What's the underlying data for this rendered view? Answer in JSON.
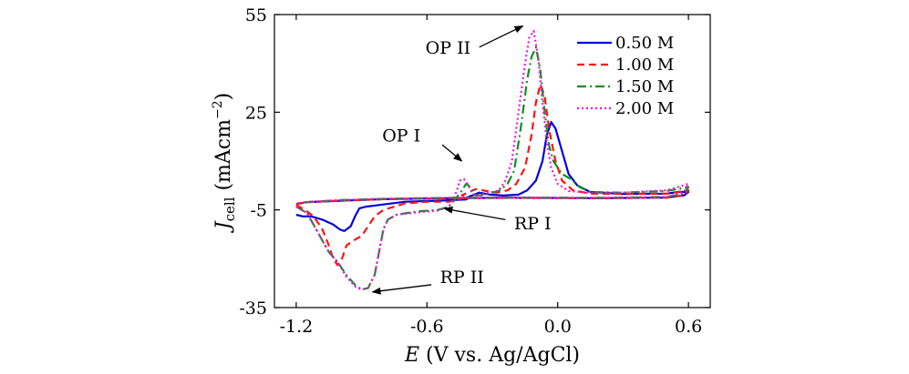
{
  "chart_data": {
    "type": "line",
    "title": "",
    "xlabel": {
      "italic": "E",
      "rest": " (V vs. Ag/AgCl)"
    },
    "ylabel": {
      "italic": "J",
      "sub": "cell",
      "rest": " (mAcm",
      "sup": "−2",
      "close": ")"
    },
    "xlim": [
      -1.3,
      0.7
    ],
    "ylim": [
      -35,
      55
    ],
    "xticks": [
      -1.2,
      -0.6,
      0.0,
      0.6
    ],
    "xtick_labels": [
      "-1.2",
      "-0.6",
      "0.0",
      "0.6"
    ],
    "yticks": [
      -35,
      -5,
      25,
      55
    ],
    "ytick_labels": [
      "-35",
      "-5",
      "25",
      "55"
    ],
    "legend_position": "top-right",
    "series": [
      {
        "name": "0.50 M",
        "color": "#0000dd",
        "dash": "solid",
        "points": [
          [
            -1.2,
            -6.5
          ],
          [
            -1.17,
            -7.0
          ],
          [
            -1.13,
            -7.0
          ],
          [
            -1.08,
            -8.0
          ],
          [
            -1.03,
            -9.5
          ],
          [
            -1.0,
            -11.0
          ],
          [
            -0.98,
            -11.5
          ],
          [
            -0.95,
            -10.0
          ],
          [
            -0.93,
            -7.0
          ],
          [
            -0.91,
            -4.5
          ],
          [
            -0.88,
            -4.0
          ],
          [
            -0.82,
            -3.5
          ],
          [
            -0.7,
            -2.5
          ],
          [
            -0.55,
            -2.2
          ],
          [
            -0.42,
            -1.8
          ],
          [
            -0.4,
            -1.0
          ],
          [
            -0.42,
            -1.3
          ],
          [
            -0.36,
            0.3
          ],
          [
            -0.31,
            -0.3
          ],
          [
            -0.25,
            -0.6
          ],
          [
            -0.18,
            -0.3
          ],
          [
            -0.14,
            1.0
          ],
          [
            -0.1,
            4.0
          ],
          [
            -0.07,
            10.0
          ],
          [
            -0.05,
            18.0
          ],
          [
            -0.03,
            22.0
          ],
          [
            -0.01,
            20.0
          ],
          [
            0.02,
            13.0
          ],
          [
            0.05,
            6.0
          ],
          [
            0.09,
            2.5
          ],
          [
            0.15,
            0.5
          ],
          [
            0.3,
            -0.1
          ],
          [
            0.5,
            0.0
          ],
          [
            0.55,
            0.5
          ],
          [
            0.6,
            0.5
          ],
          [
            0.58,
            -0.5
          ],
          [
            0.5,
            -1.2
          ],
          [
            0.2,
            -1.4
          ],
          [
            -0.2,
            -1.3
          ],
          [
            -0.5,
            -1.4
          ],
          [
            -0.8,
            -1.7
          ],
          [
            -1.0,
            -2.2
          ],
          [
            -1.15,
            -2.6
          ],
          [
            -1.2,
            -3.2
          ]
        ]
      },
      {
        "name": "1.00 M",
        "color": "#ff1111",
        "dash": "8,5",
        "points": [
          [
            -1.2,
            -3.5
          ],
          [
            -1.16,
            -5.0
          ],
          [
            -1.12,
            -7.0
          ],
          [
            -1.08,
            -11.0
          ],
          [
            -1.05,
            -16.0
          ],
          [
            -1.03,
            -20.0
          ],
          [
            -1.01,
            -22.0
          ],
          [
            -0.99,
            -20.0
          ],
          [
            -0.97,
            -16.0
          ],
          [
            -0.94,
            -14.5
          ],
          [
            -0.9,
            -13.0
          ],
          [
            -0.87,
            -10.0
          ],
          [
            -0.84,
            -7.0
          ],
          [
            -0.8,
            -5.0
          ],
          [
            -0.75,
            -4.0
          ],
          [
            -0.7,
            -3.0
          ],
          [
            -0.6,
            -2.5
          ],
          [
            -0.5,
            -2.5
          ],
          [
            -0.44,
            -1.5
          ],
          [
            -0.42,
            -0.5
          ],
          [
            -0.44,
            -0.5
          ],
          [
            -0.39,
            1.0
          ],
          [
            -0.37,
            1.5
          ],
          [
            -0.33,
            0.8
          ],
          [
            -0.28,
            0.3
          ],
          [
            -0.23,
            1.0
          ],
          [
            -0.19,
            3.0
          ],
          [
            -0.15,
            8.0
          ],
          [
            -0.12,
            18.0
          ],
          [
            -0.1,
            28.0
          ],
          [
            -0.08,
            33.5
          ],
          [
            -0.06,
            30.0
          ],
          [
            -0.04,
            20.0
          ],
          [
            -0.01,
            10.0
          ],
          [
            0.02,
            4.0
          ],
          [
            0.07,
            1.0
          ],
          [
            0.15,
            0.0
          ],
          [
            0.3,
            -0.1
          ],
          [
            0.5,
            0.0
          ],
          [
            0.55,
            0.5
          ],
          [
            0.6,
            1.0
          ],
          [
            0.58,
            -0.5
          ],
          [
            0.5,
            -1.2
          ],
          [
            0.2,
            -1.4
          ],
          [
            -0.2,
            -1.3
          ],
          [
            -0.5,
            -1.4
          ],
          [
            -0.8,
            -1.7
          ],
          [
            -1.0,
            -2.2
          ],
          [
            -1.15,
            -2.6
          ],
          [
            -1.2,
            -3.3
          ]
        ]
      },
      {
        "name": "1.50 M",
        "color": "#11901f",
        "dash": "10,4,2,4",
        "points": [
          [
            -1.2,
            -4.0
          ],
          [
            -1.15,
            -6.0
          ],
          [
            -1.1,
            -12.0
          ],
          [
            -1.05,
            -18.0
          ],
          [
            -1.01,
            -21.0
          ],
          [
            -0.97,
            -25.0
          ],
          [
            -0.93,
            -28.0
          ],
          [
            -0.9,
            -29.5
          ],
          [
            -0.87,
            -29.0
          ],
          [
            -0.84,
            -25.0
          ],
          [
            -0.82,
            -18.0
          ],
          [
            -0.8,
            -11.0
          ],
          [
            -0.78,
            -8.0
          ],
          [
            -0.74,
            -6.5
          ],
          [
            -0.65,
            -5.5
          ],
          [
            -0.55,
            -5.0
          ],
          [
            -0.5,
            -4.0
          ],
          [
            -0.48,
            -2.5
          ],
          [
            -0.45,
            0.0
          ],
          [
            -0.43,
            2.0
          ],
          [
            -0.42,
            3.0
          ],
          [
            -0.4,
            2.0
          ],
          [
            -0.38,
            -0.5
          ],
          [
            -0.35,
            -0.5
          ],
          [
            -0.3,
            0.3
          ],
          [
            -0.27,
            0.8
          ],
          [
            -0.23,
            3.0
          ],
          [
            -0.2,
            7.0
          ],
          [
            -0.17,
            20.0
          ],
          [
            -0.14,
            35.0
          ],
          [
            -0.12,
            42.0
          ],
          [
            -0.1,
            45.0
          ],
          [
            -0.08,
            38.0
          ],
          [
            -0.06,
            25.0
          ],
          [
            -0.04,
            15.0
          ],
          [
            -0.02,
            10.0
          ],
          [
            0.02,
            6.0
          ],
          [
            0.06,
            4.5
          ],
          [
            0.1,
            2.0
          ],
          [
            0.15,
            0.5
          ],
          [
            0.3,
            0.3
          ],
          [
            0.5,
            0.8
          ],
          [
            0.6,
            2.0
          ],
          [
            0.58,
            0.0
          ],
          [
            0.5,
            -1.0
          ],
          [
            0.2,
            -1.3
          ],
          [
            -0.2,
            -1.2
          ],
          [
            -0.5,
            -1.3
          ],
          [
            -0.8,
            -1.6
          ],
          [
            -1.0,
            -2.0
          ],
          [
            -1.15,
            -2.6
          ],
          [
            -1.2,
            -3.0
          ]
        ]
      },
      {
        "name": "2.00 M",
        "color": "#ee11ee",
        "dash": "2,3",
        "points": [
          [
            -1.2,
            -4.0
          ],
          [
            -1.15,
            -6.0
          ],
          [
            -1.1,
            -12.0
          ],
          [
            -1.05,
            -18.0
          ],
          [
            -1.01,
            -21.0
          ],
          [
            -0.97,
            -25.5
          ],
          [
            -0.93,
            -28.5
          ],
          [
            -0.9,
            -29.5
          ],
          [
            -0.87,
            -29.0
          ],
          [
            -0.84,
            -25.0
          ],
          [
            -0.82,
            -18.0
          ],
          [
            -0.8,
            -11.0
          ],
          [
            -0.78,
            -8.0
          ],
          [
            -0.74,
            -6.5
          ],
          [
            -0.65,
            -5.8
          ],
          [
            -0.55,
            -5.2
          ],
          [
            -0.5,
            -4.0
          ],
          [
            -0.48,
            -2.0
          ],
          [
            -0.46,
            1.5
          ],
          [
            -0.45,
            4.0
          ],
          [
            -0.43,
            4.5
          ],
          [
            -0.41,
            2.5
          ],
          [
            -0.39,
            0.0
          ],
          [
            -0.36,
            -0.5
          ],
          [
            -0.3,
            0.5
          ],
          [
            -0.27,
            1.0
          ],
          [
            -0.24,
            4.0
          ],
          [
            -0.21,
            10.0
          ],
          [
            -0.18,
            25.0
          ],
          [
            -0.15,
            40.0
          ],
          [
            -0.13,
            48.0
          ],
          [
            -0.11,
            50.0
          ],
          [
            -0.09,
            42.0
          ],
          [
            -0.07,
            28.0
          ],
          [
            -0.05,
            16.0
          ],
          [
            -0.03,
            8.0
          ],
          [
            0.0,
            3.0
          ],
          [
            0.05,
            0.8
          ],
          [
            0.15,
            0.3
          ],
          [
            0.3,
            0.3
          ],
          [
            0.5,
            1.0
          ],
          [
            0.6,
            3.0
          ],
          [
            0.58,
            0.5
          ],
          [
            0.5,
            -1.0
          ],
          [
            0.2,
            -1.3
          ],
          [
            -0.2,
            -1.2
          ],
          [
            -0.5,
            -1.3
          ],
          [
            -0.8,
            -1.6
          ],
          [
            -1.0,
            -2.0
          ],
          [
            -1.15,
            -2.6
          ],
          [
            -1.2,
            -3.0
          ]
        ]
      }
    ],
    "annotations": [
      {
        "text": "OP II",
        "anchor": "end",
        "label_at": [
          -0.4,
          43.0
        ],
        "arrow_from": [
          -0.36,
          45.0
        ],
        "arrow_to": [
          -0.16,
          51.5
        ]
      },
      {
        "text": "OP I",
        "anchor": "end",
        "label_at": [
          -0.63,
          16.0
        ],
        "arrow_from": [
          -0.53,
          15.0
        ],
        "arrow_to": [
          -0.44,
          10.0
        ]
      },
      {
        "text": "RP I",
        "anchor": "start",
        "label_at": [
          -0.2,
          -11.0
        ],
        "arrow_from": [
          -0.24,
          -8.0
        ],
        "arrow_to": [
          -0.52,
          -4.6
        ]
      },
      {
        "text": "RP II",
        "anchor": "start",
        "label_at": [
          -0.54,
          -27.5
        ],
        "arrow_from": [
          -0.58,
          -28.0
        ],
        "arrow_to": [
          -0.85,
          -30.2
        ]
      }
    ]
  }
}
